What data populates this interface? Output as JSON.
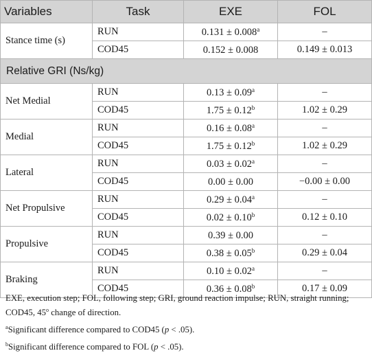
{
  "table": {
    "headers": [
      "Variables",
      "Task",
      "EXE",
      "FOL"
    ],
    "section_label": "Relative GRI (Ns/kg)",
    "stance": {
      "label": "Stance time (s)",
      "rows": [
        {
          "task": "RUN",
          "exe": "0.131 ± 0.008",
          "exe_sup": "a",
          "fol": "–"
        },
        {
          "task": "COD45",
          "exe": "0.152 ± 0.008",
          "exe_sup": "",
          "fol": "0.149 ± 0.013"
        }
      ]
    },
    "groups": [
      {
        "label": "Net Medial",
        "rows": [
          {
            "task": "RUN",
            "exe": "0.13 ± 0.09",
            "exe_sup": "a",
            "fol": "–"
          },
          {
            "task": "COD45",
            "exe": "1.75 ± 0.12",
            "exe_sup": "b",
            "fol": "1.02 ± 0.29"
          }
        ]
      },
      {
        "label": "Medial",
        "rows": [
          {
            "task": "RUN",
            "exe": "0.16 ± 0.08",
            "exe_sup": "a",
            "fol": "–"
          },
          {
            "task": "COD45",
            "exe": "1.75 ± 0.12",
            "exe_sup": "b",
            "fol": "1.02 ± 0.29"
          }
        ]
      },
      {
        "label": "Lateral",
        "rows": [
          {
            "task": "RUN",
            "exe": "0.03 ± 0.02",
            "exe_sup": "a",
            "fol": "–"
          },
          {
            "task": "COD45",
            "exe": "0.00 ± 0.00",
            "exe_sup": "",
            "fol": "−0.00 ± 0.00"
          }
        ]
      },
      {
        "label": "Net Propulsive",
        "rows": [
          {
            "task": "RUN",
            "exe": "0.29 ± 0.04",
            "exe_sup": "a",
            "fol": "–"
          },
          {
            "task": "COD45",
            "exe": "0.02 ± 0.10",
            "exe_sup": "b",
            "fol": "0.12 ± 0.10"
          }
        ]
      },
      {
        "label": "Propulsive",
        "rows": [
          {
            "task": "RUN",
            "exe": "0.39 ± 0.00",
            "exe_sup": "",
            "fol": "–"
          },
          {
            "task": "COD45",
            "exe": "0.38 ± 0.05",
            "exe_sup": "b",
            "fol": "0.29 ± 0.04"
          }
        ]
      },
      {
        "label": "Braking",
        "rows": [
          {
            "task": "RUN",
            "exe": "0.10 ± 0.02",
            "exe_sup": "a",
            "fol": "–"
          },
          {
            "task": "COD45",
            "exe": "0.36 ± 0.08",
            "exe_sup": "b",
            "fol": "0.17 ± 0.09"
          }
        ]
      }
    ]
  },
  "notes": {
    "abbreviations": "EXE, execution step; FOL, following step; GRI, ground reaction impulse; RUN, straight running; COD45, 45",
    "abbreviations_sup": "o",
    "abbreviations_end": " change of direction.",
    "footnote_a": {
      "mark": "a",
      "text": "Significant difference compared to COD45 (",
      "p": "p",
      "tail": " < .05)."
    },
    "footnote_b": {
      "mark": "b",
      "text": "Significant difference compared to FOL (",
      "p": "p",
      "tail": " < .05)."
    }
  }
}
